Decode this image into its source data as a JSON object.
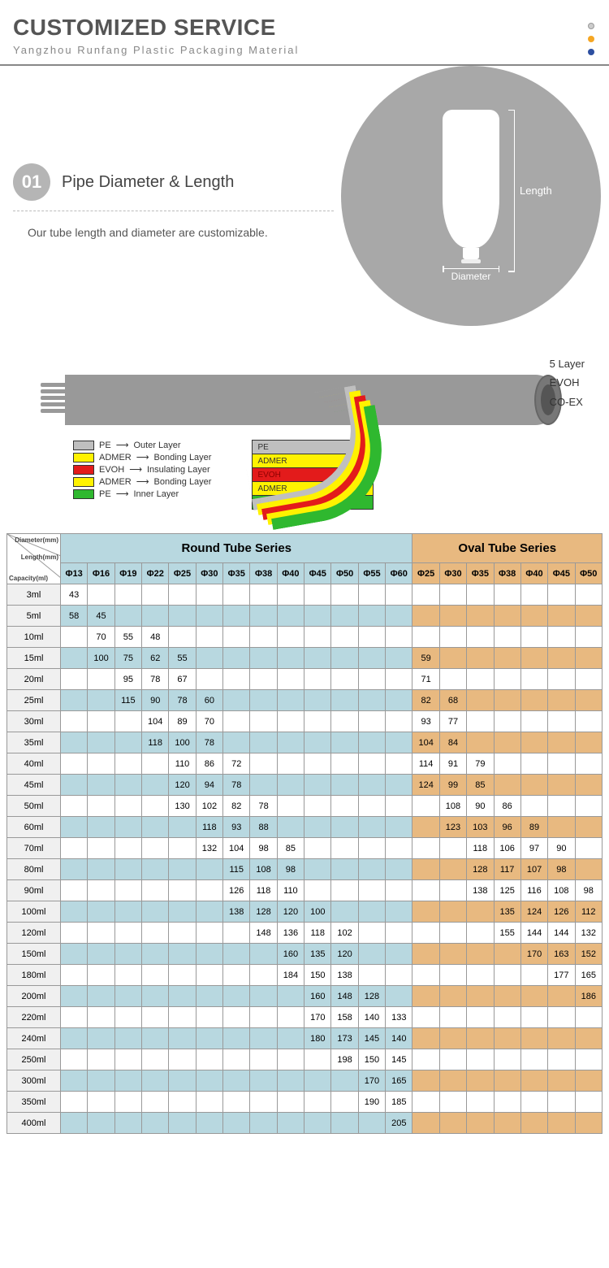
{
  "header": {
    "title": "CUSTOMIZED SERVICE",
    "subtitle": "Yangzhou Runfang Plastic Packaging Material",
    "dot_colors": [
      "#cccccc",
      "#f5a623",
      "#2d4fa0"
    ]
  },
  "section1": {
    "step_num": "01",
    "step_title": "Pipe Diameter & Length",
    "desc": "Our tube length and diameter are customizable.",
    "dim_length": "Length",
    "dim_diameter": "Diameter"
  },
  "diagram": {
    "side_labels": [
      "5 Layer",
      "EVOH",
      "CO-EX"
    ],
    "legend": [
      {
        "color": "#bfbfbf",
        "name": "PE",
        "role": "Outer Layer"
      },
      {
        "color": "#fff200",
        "name": "ADMER",
        "role": "Bonding Layer"
      },
      {
        "color": "#e31b1b",
        "name": "EVOH",
        "role": "Insulating Layer"
      },
      {
        "color": "#fff200",
        "name": "ADMER",
        "role": "Bonding Layer"
      },
      {
        "color": "#2fb82f",
        "name": "PE",
        "role": "Inner Layer"
      }
    ],
    "stack": [
      {
        "color": "#bfbfbf",
        "label": "PE"
      },
      {
        "color": "#fff200",
        "label": "ADMER"
      },
      {
        "color": "#e31b1b",
        "label": "EVOH",
        "text_color": "#8b0000"
      },
      {
        "color": "#fff200",
        "label": "ADMER"
      },
      {
        "color": "#2fb82f",
        "label": "PE"
      }
    ],
    "curve_colors": [
      "#bfbfbf",
      "#fff200",
      "#e31b1b",
      "#fff200",
      "#2fb82f"
    ]
  },
  "table": {
    "corner_labels": [
      "Diameter(mm)",
      "Length(mm)",
      "Capacity(ml)"
    ],
    "round_title": "Round Tube Series",
    "oval_title": "Oval Tube Series",
    "round_cols": [
      "Φ13",
      "Φ16",
      "Φ19",
      "Φ22",
      "Φ25",
      "Φ30",
      "Φ35",
      "Φ38",
      "Φ40",
      "Φ45",
      "Φ50",
      "Φ55",
      "Φ60"
    ],
    "oval_cols": [
      "Φ25",
      "Φ30",
      "Φ35",
      "Φ38",
      "Φ40",
      "Φ45",
      "Φ50"
    ],
    "rows": [
      {
        "cap": "3ml",
        "r": [
          "43",
          "",
          "",
          "",
          "",
          "",
          "",
          "",
          "",
          "",
          "",
          "",
          ""
        ],
        "o": [
          "",
          "",
          "",
          "",
          "",
          "",
          ""
        ],
        "shade": false
      },
      {
        "cap": "5ml",
        "r": [
          "58",
          "45",
          "",
          "",
          "",
          "",
          "",
          "",
          "",
          "",
          "",
          "",
          ""
        ],
        "o": [
          "",
          "",
          "",
          "",
          "",
          "",
          ""
        ],
        "shade": true
      },
      {
        "cap": "10ml",
        "r": [
          "",
          "70",
          "55",
          "48",
          "",
          "",
          "",
          "",
          "",
          "",
          "",
          "",
          ""
        ],
        "o": [
          "",
          "",
          "",
          "",
          "",
          "",
          ""
        ],
        "shade": false
      },
      {
        "cap": "15ml",
        "r": [
          "",
          "100",
          "75",
          "62",
          "55",
          "",
          "",
          "",
          "",
          "",
          "",
          "",
          ""
        ],
        "o": [
          "59",
          "",
          "",
          "",
          "",
          "",
          ""
        ],
        "shade": true
      },
      {
        "cap": "20ml",
        "r": [
          "",
          "",
          "95",
          "78",
          "67",
          "",
          "",
          "",
          "",
          "",
          "",
          "",
          ""
        ],
        "o": [
          "71",
          "",
          "",
          "",
          "",
          "",
          ""
        ],
        "shade": false
      },
      {
        "cap": "25ml",
        "r": [
          "",
          "",
          "115",
          "90",
          "78",
          "60",
          "",
          "",
          "",
          "",
          "",
          "",
          ""
        ],
        "o": [
          "82",
          "68",
          "",
          "",
          "",
          "",
          ""
        ],
        "shade": true
      },
      {
        "cap": "30ml",
        "r": [
          "",
          "",
          "",
          "104",
          "89",
          "70",
          "",
          "",
          "",
          "",
          "",
          "",
          ""
        ],
        "o": [
          "93",
          "77",
          "",
          "",
          "",
          "",
          ""
        ],
        "shade": false
      },
      {
        "cap": "35ml",
        "r": [
          "",
          "",
          "",
          "118",
          "100",
          "78",
          "",
          "",
          "",
          "",
          "",
          "",
          ""
        ],
        "o": [
          "104",
          "84",
          "",
          "",
          "",
          "",
          ""
        ],
        "shade": true
      },
      {
        "cap": "40ml",
        "r": [
          "",
          "",
          "",
          "",
          "110",
          "86",
          "72",
          "",
          "",
          "",
          "",
          "",
          ""
        ],
        "o": [
          "114",
          "91",
          "79",
          "",
          "",
          "",
          ""
        ],
        "shade": false
      },
      {
        "cap": "45ml",
        "r": [
          "",
          "",
          "",
          "",
          "120",
          "94",
          "78",
          "",
          "",
          "",
          "",
          "",
          ""
        ],
        "o": [
          "124",
          "99",
          "85",
          "",
          "",
          "",
          ""
        ],
        "shade": true
      },
      {
        "cap": "50ml",
        "r": [
          "",
          "",
          "",
          "",
          "130",
          "102",
          "82",
          "78",
          "",
          "",
          "",
          "",
          ""
        ],
        "o": [
          "",
          "108",
          "90",
          "86",
          "",
          "",
          ""
        ],
        "shade": false
      },
      {
        "cap": "60ml",
        "r": [
          "",
          "",
          "",
          "",
          "",
          "118",
          "93",
          "88",
          "",
          "",
          "",
          "",
          ""
        ],
        "o": [
          "",
          "123",
          "103",
          "96",
          "89",
          "",
          ""
        ],
        "shade": true
      },
      {
        "cap": "70ml",
        "r": [
          "",
          "",
          "",
          "",
          "",
          "132",
          "104",
          "98",
          "85",
          "",
          "",
          "",
          ""
        ],
        "o": [
          "",
          "",
          "118",
          "106",
          "97",
          "90",
          ""
        ],
        "shade": false
      },
      {
        "cap": "80ml",
        "r": [
          "",
          "",
          "",
          "",
          "",
          "",
          "115",
          "108",
          "98",
          "",
          "",
          "",
          ""
        ],
        "o": [
          "",
          "",
          "128",
          "117",
          "107",
          "98",
          ""
        ],
        "shade": true
      },
      {
        "cap": "90ml",
        "r": [
          "",
          "",
          "",
          "",
          "",
          "",
          "126",
          "118",
          "110",
          "",
          "",
          "",
          ""
        ],
        "o": [
          "",
          "",
          "138",
          "125",
          "116",
          "108",
          "98"
        ],
        "shade": false
      },
      {
        "cap": "100ml",
        "r": [
          "",
          "",
          "",
          "",
          "",
          "",
          "138",
          "128",
          "120",
          "100",
          "",
          "",
          ""
        ],
        "o": [
          "",
          "",
          "",
          "135",
          "124",
          "126",
          "112"
        ],
        "shade": true
      },
      {
        "cap": "120ml",
        "r": [
          "",
          "",
          "",
          "",
          "",
          "",
          "",
          "148",
          "136",
          "118",
          "102",
          "",
          ""
        ],
        "o": [
          "",
          "",
          "",
          "155",
          "144",
          "144",
          "132"
        ],
        "shade": false
      },
      {
        "cap": "150ml",
        "r": [
          "",
          "",
          "",
          "",
          "",
          "",
          "",
          "",
          "160",
          "135",
          "120",
          "",
          ""
        ],
        "o": [
          "",
          "",
          "",
          "",
          "170",
          "163",
          "152"
        ],
        "shade": true
      },
      {
        "cap": "180ml",
        "r": [
          "",
          "",
          "",
          "",
          "",
          "",
          "",
          "",
          "184",
          "150",
          "138",
          "",
          ""
        ],
        "o": [
          "",
          "",
          "",
          "",
          "",
          "177",
          "165"
        ],
        "shade": false
      },
      {
        "cap": "200ml",
        "r": [
          "",
          "",
          "",
          "",
          "",
          "",
          "",
          "",
          "",
          "160",
          "148",
          "128",
          ""
        ],
        "o": [
          "",
          "",
          "",
          "",
          "",
          "",
          "186"
        ],
        "shade": true
      },
      {
        "cap": "220ml",
        "r": [
          "",
          "",
          "",
          "",
          "",
          "",
          "",
          "",
          "",
          "170",
          "158",
          "140",
          "133"
        ],
        "o": [
          "",
          "",
          "",
          "",
          "",
          "",
          ""
        ],
        "shade": false
      },
      {
        "cap": "240ml",
        "r": [
          "",
          "",
          "",
          "",
          "",
          "",
          "",
          "",
          "",
          "180",
          "173",
          "145",
          "140"
        ],
        "o": [
          "",
          "",
          "",
          "",
          "",
          "",
          ""
        ],
        "shade": true
      },
      {
        "cap": "250ml",
        "r": [
          "",
          "",
          "",
          "",
          "",
          "",
          "",
          "",
          "",
          "",
          "198",
          "150",
          "145"
        ],
        "o": [
          "",
          "",
          "",
          "",
          "",
          "",
          ""
        ],
        "shade": false
      },
      {
        "cap": "300ml",
        "r": [
          "",
          "",
          "",
          "",
          "",
          "",
          "",
          "",
          "",
          "",
          "",
          "170",
          "165"
        ],
        "o": [
          "",
          "",
          "",
          "",
          "",
          "",
          ""
        ],
        "shade": true
      },
      {
        "cap": "350ml",
        "r": [
          "",
          "",
          "",
          "",
          "",
          "",
          "",
          "",
          "",
          "",
          "",
          "190",
          "185"
        ],
        "o": [
          "",
          "",
          "",
          "",
          "",
          "",
          ""
        ],
        "shade": false
      },
      {
        "cap": "400ml",
        "r": [
          "",
          "",
          "",
          "",
          "",
          "",
          "",
          "",
          "",
          "",
          "",
          "",
          "205"
        ],
        "o": [
          "",
          "",
          "",
          "",
          "",
          "",
          ""
        ],
        "shade": true
      }
    ]
  }
}
